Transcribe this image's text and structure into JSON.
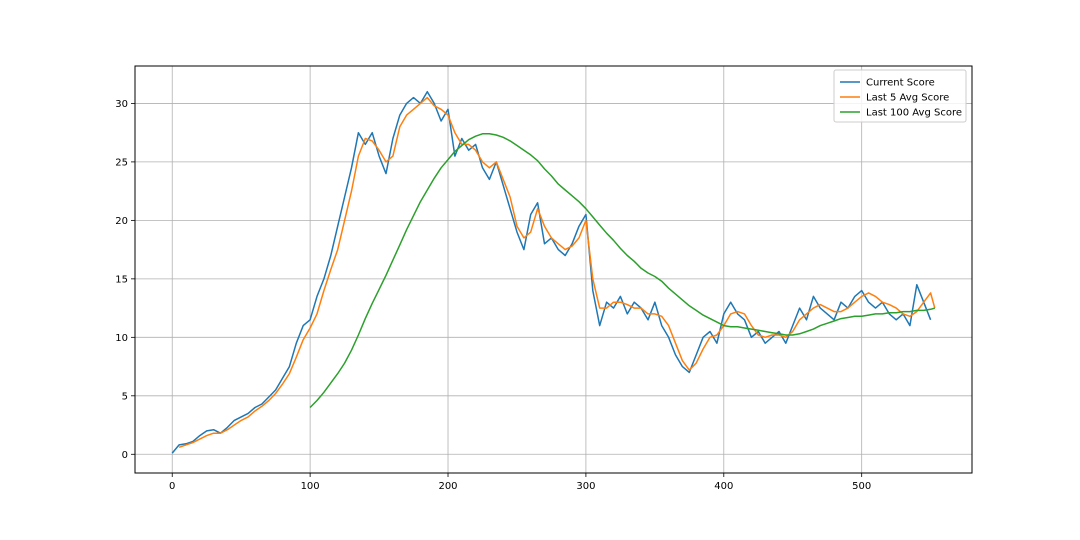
{
  "chart_data": {
    "type": "line",
    "title": "",
    "xlabel": "",
    "ylabel": "",
    "xlim": [
      -27,
      580
    ],
    "ylim": [
      -1.6,
      33.2
    ],
    "x_ticks": [
      0,
      100,
      200,
      300,
      400,
      500
    ],
    "y_ticks": [
      0,
      5,
      10,
      15,
      20,
      25,
      30
    ],
    "grid": true,
    "legend_position": "top-right",
    "colors": [
      "#1f77b4",
      "#ff7f0e",
      "#2ca02c"
    ],
    "series": [
      {
        "name": "Current Score",
        "color": "#1f77b4",
        "x": [
          0,
          5,
          10,
          15,
          20,
          25,
          30,
          35,
          40,
          45,
          50,
          55,
          60,
          65,
          70,
          75,
          80,
          85,
          90,
          95,
          100,
          105,
          110,
          115,
          120,
          125,
          130,
          135,
          140,
          145,
          150,
          155,
          160,
          165,
          170,
          175,
          180,
          185,
          190,
          195,
          200,
          205,
          210,
          215,
          220,
          225,
          230,
          235,
          240,
          245,
          250,
          255,
          260,
          265,
          270,
          275,
          280,
          285,
          290,
          295,
          300,
          305,
          310,
          315,
          320,
          325,
          330,
          335,
          340,
          345,
          350,
          355,
          360,
          365,
          370,
          375,
          380,
          385,
          390,
          395,
          400,
          405,
          410,
          415,
          420,
          425,
          430,
          435,
          440,
          445,
          450,
          455,
          460,
          465,
          470,
          475,
          480,
          485,
          490,
          495,
          500,
          505,
          510,
          515,
          520,
          525,
          530,
          535,
          540,
          545,
          550
        ],
        "y": [
          0.1,
          0.8,
          0.9,
          1.1,
          1.6,
          2.0,
          2.1,
          1.8,
          2.3,
          2.9,
          3.2,
          3.5,
          4.0,
          4.3,
          4.9,
          5.5,
          6.5,
          7.5,
          9.5,
          11.0,
          11.5,
          13.5,
          15.0,
          17.0,
          19.5,
          22.0,
          24.5,
          27.5,
          26.5,
          27.5,
          25.5,
          24.0,
          27.0,
          29.0,
          30.0,
          30.5,
          30.0,
          31.0,
          30.0,
          28.5,
          29.5,
          25.5,
          27.0,
          26.0,
          26.5,
          24.5,
          23.5,
          25.0,
          23.0,
          21.0,
          19.0,
          17.5,
          20.5,
          21.5,
          18.0,
          18.5,
          17.5,
          17.0,
          18.0,
          19.5,
          20.5,
          14.0,
          11.0,
          13.0,
          12.5,
          13.5,
          12.0,
          13.0,
          12.5,
          11.5,
          13.0,
          11.0,
          10.0,
          8.5,
          7.5,
          7.0,
          8.5,
          10.0,
          10.5,
          9.5,
          12.0,
          13.0,
          12.0,
          11.5,
          10.0,
          10.5,
          9.5,
          10.0,
          10.5,
          9.5,
          11.0,
          12.5,
          11.5,
          13.5,
          12.5,
          12.0,
          11.5,
          13.0,
          12.5,
          13.5,
          14.0,
          13.0,
          12.5,
          13.0,
          12.0,
          11.5,
          12.0,
          11.0,
          14.5,
          13.0,
          11.5
        ]
      },
      {
        "name": "Last 5 Avg Score",
        "color": "#ff7f0e",
        "x": [
          5,
          10,
          15,
          20,
          25,
          30,
          35,
          40,
          45,
          50,
          55,
          60,
          65,
          70,
          75,
          80,
          85,
          90,
          95,
          100,
          105,
          110,
          115,
          120,
          125,
          130,
          135,
          140,
          145,
          150,
          155,
          160,
          165,
          170,
          175,
          180,
          185,
          190,
          195,
          200,
          205,
          210,
          215,
          220,
          225,
          230,
          235,
          240,
          245,
          250,
          255,
          260,
          265,
          270,
          275,
          280,
          285,
          290,
          295,
          300,
          305,
          310,
          315,
          320,
          325,
          330,
          335,
          340,
          345,
          350,
          355,
          360,
          365,
          370,
          375,
          380,
          385,
          390,
          395,
          400,
          405,
          410,
          415,
          420,
          425,
          430,
          435,
          440,
          445,
          450,
          455,
          460,
          465,
          470,
          475,
          480,
          485,
          490,
          495,
          500,
          505,
          510,
          515,
          520,
          525,
          530,
          535,
          540,
          545,
          550,
          553
        ],
        "y": [
          0.6,
          0.8,
          1.0,
          1.3,
          1.6,
          1.8,
          1.8,
          2.1,
          2.5,
          2.9,
          3.2,
          3.7,
          4.1,
          4.6,
          5.2,
          6.0,
          6.9,
          8.3,
          9.8,
          10.8,
          12.0,
          14.0,
          15.8,
          17.5,
          20.0,
          22.5,
          25.5,
          27.0,
          26.8,
          26.0,
          25.0,
          25.5,
          28.0,
          29.0,
          29.5,
          30.0,
          30.5,
          29.8,
          29.5,
          29.0,
          27.5,
          26.5,
          26.5,
          26.0,
          25.0,
          24.5,
          25.0,
          23.5,
          22.0,
          19.5,
          18.5,
          19.0,
          21.0,
          19.5,
          18.5,
          18.0,
          17.5,
          17.8,
          18.5,
          20.0,
          15.0,
          12.5,
          12.5,
          13.0,
          13.0,
          12.8,
          12.5,
          12.5,
          12.0,
          12.0,
          11.8,
          11.0,
          9.5,
          8.0,
          7.2,
          7.8,
          9.0,
          10.0,
          10.2,
          11.0,
          12.0,
          12.2,
          12.0,
          11.0,
          10.2,
          10.0,
          10.2,
          10.2,
          10.0,
          10.5,
          11.5,
          12.0,
          12.5,
          12.8,
          12.5,
          12.2,
          12.2,
          12.5,
          13.0,
          13.5,
          13.8,
          13.5,
          13.0,
          12.8,
          12.5,
          12.0,
          11.8,
          12.2,
          13.0,
          13.8,
          12.5
        ]
      },
      {
        "name": "Last 100 Avg Score",
        "color": "#2ca02c",
        "x": [
          100,
          105,
          110,
          115,
          120,
          125,
          130,
          135,
          140,
          145,
          150,
          155,
          160,
          165,
          170,
          175,
          180,
          185,
          190,
          195,
          200,
          205,
          210,
          215,
          220,
          225,
          230,
          235,
          240,
          245,
          250,
          255,
          260,
          265,
          270,
          275,
          280,
          285,
          290,
          295,
          300,
          305,
          310,
          315,
          320,
          325,
          330,
          335,
          340,
          345,
          350,
          355,
          360,
          365,
          370,
          375,
          380,
          385,
          390,
          395,
          400,
          405,
          410,
          415,
          420,
          425,
          430,
          435,
          440,
          445,
          450,
          455,
          460,
          465,
          470,
          475,
          480,
          485,
          490,
          495,
          500,
          505,
          510,
          515,
          520,
          525,
          530,
          535,
          540,
          545,
          550,
          553
        ],
        "y": [
          4.0,
          4.6,
          5.3,
          6.1,
          6.9,
          7.8,
          8.9,
          10.2,
          11.6,
          12.9,
          14.1,
          15.3,
          16.6,
          17.9,
          19.2,
          20.4,
          21.6,
          22.6,
          23.6,
          24.5,
          25.2,
          25.9,
          26.4,
          26.9,
          27.2,
          27.4,
          27.4,
          27.3,
          27.1,
          26.8,
          26.4,
          26.0,
          25.6,
          25.1,
          24.4,
          23.8,
          23.1,
          22.6,
          22.1,
          21.6,
          21.0,
          20.3,
          19.6,
          18.9,
          18.3,
          17.6,
          17.0,
          16.5,
          15.9,
          15.5,
          15.2,
          14.8,
          14.2,
          13.7,
          13.2,
          12.7,
          12.3,
          11.9,
          11.6,
          11.3,
          11.0,
          10.9,
          10.9,
          10.8,
          10.7,
          10.6,
          10.5,
          10.4,
          10.3,
          10.2,
          10.2,
          10.3,
          10.5,
          10.7,
          11.0,
          11.2,
          11.4,
          11.6,
          11.7,
          11.8,
          11.8,
          11.9,
          12.0,
          12.0,
          12.1,
          12.1,
          12.2,
          12.2,
          12.3,
          12.3,
          12.4,
          12.5
        ]
      }
    ]
  }
}
